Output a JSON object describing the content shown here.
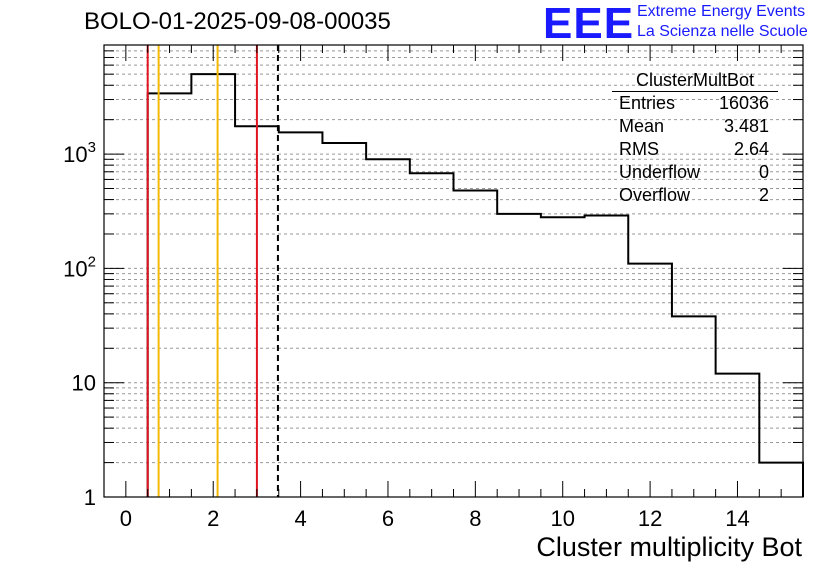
{
  "header": {
    "title": "BOLO-01-2025-09-08-00035",
    "logo_text": "EEE",
    "org_line1": "Extreme Energy Events",
    "org_line2": "La Scienza nelle Scuole"
  },
  "stats": {
    "name": "ClusterMultBot",
    "rows": [
      {
        "label": "Entries",
        "value": "16036"
      },
      {
        "label": "Mean",
        "value": "3.481"
      },
      {
        "label": "RMS",
        "value": "2.64"
      },
      {
        "label": "Underflow",
        "value": "0"
      },
      {
        "label": "Overflow",
        "value": "2"
      }
    ]
  },
  "colors": {
    "accent_blue": "#1a1aff",
    "red": "#e0141e",
    "orange": "#f5b800",
    "grid": "#999999"
  },
  "chart_data": {
    "type": "histogram",
    "title": "BOLO-01-2025-09-08-00035",
    "xlabel": "Cluster multiplicity Bot",
    "ylabel": "",
    "yscale": "log",
    "xlim": [
      -0.5,
      15.5
    ],
    "ylim": [
      1,
      9000
    ],
    "x_ticks": [
      0,
      2,
      4,
      6,
      8,
      10,
      12,
      14
    ],
    "x_tick_labels": [
      "0",
      "2",
      "4",
      "6",
      "8",
      "10",
      "12",
      "14"
    ],
    "y_ticks": [
      1,
      10,
      100,
      1000
    ],
    "y_tick_labels": [
      "1",
      "10",
      "10^2",
      "10^3"
    ],
    "bin_edges": [
      0.5,
      1.5,
      2.5,
      3.5,
      4.5,
      5.5,
      6.5,
      7.5,
      8.5,
      9.5,
      10.5,
      11.5,
      12.5,
      13.5,
      14.5,
      15.5
    ],
    "bin_counts": [
      3400,
      5000,
      1750,
      1550,
      1250,
      900,
      680,
      480,
      300,
      280,
      290,
      110,
      38,
      12,
      2
    ],
    "vertical_lines": [
      {
        "x": 0.5,
        "color": "red",
        "style": "solid"
      },
      {
        "x": 0.75,
        "color": "orange",
        "style": "solid"
      },
      {
        "x": 2.1,
        "color": "orange",
        "style": "solid"
      },
      {
        "x": 3.0,
        "color": "red",
        "style": "solid"
      },
      {
        "x": 3.481,
        "color": "black",
        "style": "dashed"
      }
    ],
    "grid": true
  }
}
